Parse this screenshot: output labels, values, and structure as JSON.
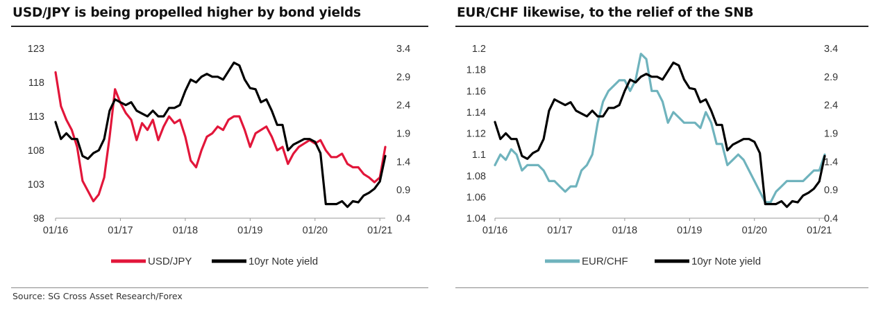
{
  "source": "Source: SG Cross Asset Research/Forex",
  "colors": {
    "usdjpy": "#e2163a",
    "eurchf": "#6fb3bd",
    "yield": "#000000"
  },
  "chart_data": [
    {
      "type": "line",
      "title": "USD/JPY is being propelled higher by bond yields",
      "x_tick_labels": [
        "01/16",
        "01/17",
        "01/18",
        "01/19",
        "01/20",
        "01/21"
      ],
      "x_ticks": [
        "2016-01",
        "2017-01",
        "2018-01",
        "2019-01",
        "2020-01",
        "2021-01"
      ],
      "xlim": [
        "2016-01",
        "2021-02"
      ],
      "left_axis": {
        "ticks": [
          98,
          103,
          108,
          113,
          118,
          123
        ],
        "labels": [
          "98",
          "103",
          "108",
          "113",
          "118",
          "123"
        ],
        "ylim": [
          98,
          123
        ]
      },
      "right_axis": {
        "ticks": [
          0.4,
          0.9,
          1.4,
          1.9,
          2.4,
          2.9,
          3.4
        ],
        "labels": [
          "0.4",
          "0.9",
          "1.4",
          "1.9",
          "2.4",
          "2.9",
          "3.4"
        ],
        "ylim": [
          0.4,
          3.4
        ]
      },
      "grid": false,
      "legend_position": "bottom",
      "series": [
        {
          "name": "USD/JPY",
          "axis": "left",
          "color": "#e2163a",
          "x": [
            "2016-01",
            "2016-02",
            "2016-03",
            "2016-04",
            "2016-05",
            "2016-06",
            "2016-07",
            "2016-08",
            "2016-09",
            "2016-10",
            "2016-11",
            "2016-12",
            "2017-01",
            "2017-02",
            "2017-03",
            "2017-04",
            "2017-05",
            "2017-06",
            "2017-07",
            "2017-08",
            "2017-09",
            "2017-10",
            "2017-11",
            "2017-12",
            "2018-01",
            "2018-02",
            "2018-03",
            "2018-04",
            "2018-05",
            "2018-06",
            "2018-07",
            "2018-08",
            "2018-09",
            "2018-10",
            "2018-11",
            "2018-12",
            "2019-01",
            "2019-02",
            "2019-03",
            "2019-04",
            "2019-05",
            "2019-06",
            "2019-07",
            "2019-08",
            "2019-09",
            "2019-10",
            "2019-11",
            "2019-12",
            "2020-01",
            "2020-02",
            "2020-03",
            "2020-04",
            "2020-05",
            "2020-06",
            "2020-07",
            "2020-08",
            "2020-09",
            "2020-10",
            "2020-11",
            "2020-12",
            "2021-01",
            "2021-02"
          ],
          "values": [
            119.5,
            114.5,
            112.5,
            111.0,
            108.5,
            103.5,
            102.0,
            100.5,
            101.5,
            104.0,
            110.0,
            117.0,
            115.0,
            113.5,
            112.5,
            109.5,
            112.0,
            111.0,
            112.5,
            109.5,
            111.5,
            113.0,
            112.0,
            112.5,
            110.0,
            106.5,
            105.5,
            108.0,
            110.0,
            110.5,
            111.5,
            111.0,
            112.5,
            113.0,
            113.0,
            111.0,
            108.5,
            110.5,
            111.0,
            111.5,
            110.0,
            108.0,
            108.5,
            106.0,
            107.5,
            108.5,
            109.0,
            109.5,
            109.0,
            109.5,
            108.0,
            107.0,
            107.0,
            107.5,
            106.0,
            105.5,
            105.5,
            104.5,
            104.0,
            103.3,
            104.0,
            108.5
          ]
        },
        {
          "name": "10yr Note yield",
          "axis": "right",
          "color": "#000000",
          "x": [
            "2016-01",
            "2016-02",
            "2016-03",
            "2016-04",
            "2016-05",
            "2016-06",
            "2016-07",
            "2016-08",
            "2016-09",
            "2016-10",
            "2016-11",
            "2016-12",
            "2017-01",
            "2017-02",
            "2017-03",
            "2017-04",
            "2017-05",
            "2017-06",
            "2017-07",
            "2017-08",
            "2017-09",
            "2017-10",
            "2017-11",
            "2017-12",
            "2018-01",
            "2018-02",
            "2018-03",
            "2018-04",
            "2018-05",
            "2018-06",
            "2018-07",
            "2018-08",
            "2018-09",
            "2018-10",
            "2018-11",
            "2018-12",
            "2019-01",
            "2019-02",
            "2019-03",
            "2019-04",
            "2019-05",
            "2019-06",
            "2019-07",
            "2019-08",
            "2019-09",
            "2019-10",
            "2019-11",
            "2019-12",
            "2020-01",
            "2020-02",
            "2020-03",
            "2020-04",
            "2020-05",
            "2020-06",
            "2020-07",
            "2020-08",
            "2020-09",
            "2020-10",
            "2020-11",
            "2020-12",
            "2021-01",
            "2021-02"
          ],
          "values": [
            2.1,
            1.8,
            1.9,
            1.8,
            1.8,
            1.5,
            1.45,
            1.55,
            1.6,
            1.8,
            2.3,
            2.5,
            2.45,
            2.4,
            2.45,
            2.3,
            2.25,
            2.2,
            2.3,
            2.2,
            2.2,
            2.35,
            2.35,
            2.4,
            2.65,
            2.85,
            2.8,
            2.9,
            2.95,
            2.9,
            2.9,
            2.85,
            3.0,
            3.15,
            3.1,
            2.85,
            2.7,
            2.68,
            2.45,
            2.5,
            2.3,
            2.05,
            2.05,
            1.6,
            1.7,
            1.75,
            1.8,
            1.8,
            1.75,
            1.55,
            0.65,
            0.65,
            0.65,
            0.7,
            0.6,
            0.7,
            0.68,
            0.8,
            0.85,
            0.92,
            1.05,
            1.5
          ]
        }
      ]
    },
    {
      "type": "line",
      "title": "EUR/CHF likewise, to the relief of the SNB",
      "x_tick_labels": [
        "01/16",
        "01/17",
        "01/18",
        "01/19",
        "01/20",
        "01/21"
      ],
      "x_ticks": [
        "2016-01",
        "2017-01",
        "2018-01",
        "2019-01",
        "2020-01",
        "2021-01"
      ],
      "xlim": [
        "2016-01",
        "2021-02"
      ],
      "left_axis": {
        "ticks": [
          1.04,
          1.06,
          1.08,
          1.1,
          1.12,
          1.14,
          1.16,
          1.18,
          1.2
        ],
        "labels": [
          "1.04",
          "1.06",
          "1.08",
          "1.1",
          "1.12",
          "1.14",
          "1.16",
          "1.18",
          "1.2"
        ],
        "ylim": [
          1.04,
          1.2
        ]
      },
      "right_axis": {
        "ticks": [
          0.4,
          0.9,
          1.4,
          1.9,
          2.4,
          2.9,
          3.4
        ],
        "labels": [
          "0.4",
          "0.9",
          "1.4",
          "1.9",
          "2.4",
          "2.9",
          "3.4"
        ],
        "ylim": [
          0.4,
          3.4
        ]
      },
      "grid": false,
      "legend_position": "bottom",
      "series": [
        {
          "name": "EUR/CHF",
          "axis": "left",
          "color": "#6fb3bd",
          "x": [
            "2016-01",
            "2016-02",
            "2016-03",
            "2016-04",
            "2016-05",
            "2016-06",
            "2016-07",
            "2016-08",
            "2016-09",
            "2016-10",
            "2016-11",
            "2016-12",
            "2017-01",
            "2017-02",
            "2017-03",
            "2017-04",
            "2017-05",
            "2017-06",
            "2017-07",
            "2017-08",
            "2017-09",
            "2017-10",
            "2017-11",
            "2017-12",
            "2018-01",
            "2018-02",
            "2018-03",
            "2018-04",
            "2018-05",
            "2018-06",
            "2018-07",
            "2018-08",
            "2018-09",
            "2018-10",
            "2018-11",
            "2018-12",
            "2019-01",
            "2019-02",
            "2019-03",
            "2019-04",
            "2019-05",
            "2019-06",
            "2019-07",
            "2019-08",
            "2019-09",
            "2019-10",
            "2019-11",
            "2019-12",
            "2020-01",
            "2020-02",
            "2020-03",
            "2020-04",
            "2020-05",
            "2020-06",
            "2020-07",
            "2020-08",
            "2020-09",
            "2020-10",
            "2020-11",
            "2020-12",
            "2021-01",
            "2021-02"
          ],
          "values": [
            1.09,
            1.1,
            1.095,
            1.105,
            1.1,
            1.085,
            1.09,
            1.09,
            1.09,
            1.085,
            1.075,
            1.075,
            1.07,
            1.065,
            1.07,
            1.07,
            1.085,
            1.09,
            1.1,
            1.13,
            1.15,
            1.16,
            1.165,
            1.17,
            1.17,
            1.16,
            1.17,
            1.195,
            1.19,
            1.16,
            1.16,
            1.15,
            1.13,
            1.14,
            1.135,
            1.13,
            1.13,
            1.13,
            1.125,
            1.14,
            1.13,
            1.11,
            1.11,
            1.09,
            1.095,
            1.1,
            1.095,
            1.085,
            1.075,
            1.065,
            1.055,
            1.055,
            1.065,
            1.07,
            1.075,
            1.075,
            1.075,
            1.075,
            1.08,
            1.085,
            1.085,
            1.1
          ]
        },
        {
          "name": "10yr Note yield",
          "axis": "right",
          "color": "#000000",
          "x": [
            "2016-01",
            "2016-02",
            "2016-03",
            "2016-04",
            "2016-05",
            "2016-06",
            "2016-07",
            "2016-08",
            "2016-09",
            "2016-10",
            "2016-11",
            "2016-12",
            "2017-01",
            "2017-02",
            "2017-03",
            "2017-04",
            "2017-05",
            "2017-06",
            "2017-07",
            "2017-08",
            "2017-09",
            "2017-10",
            "2017-11",
            "2017-12",
            "2018-01",
            "2018-02",
            "2018-03",
            "2018-04",
            "2018-05",
            "2018-06",
            "2018-07",
            "2018-08",
            "2018-09",
            "2018-10",
            "2018-11",
            "2018-12",
            "2019-01",
            "2019-02",
            "2019-03",
            "2019-04",
            "2019-05",
            "2019-06",
            "2019-07",
            "2019-08",
            "2019-09",
            "2019-10",
            "2019-11",
            "2019-12",
            "2020-01",
            "2020-02",
            "2020-03",
            "2020-04",
            "2020-05",
            "2020-06",
            "2020-07",
            "2020-08",
            "2020-09",
            "2020-10",
            "2020-11",
            "2020-12",
            "2021-01",
            "2021-02"
          ],
          "values": [
            2.1,
            1.8,
            1.9,
            1.8,
            1.8,
            1.5,
            1.45,
            1.55,
            1.6,
            1.8,
            2.3,
            2.5,
            2.45,
            2.4,
            2.45,
            2.3,
            2.25,
            2.2,
            2.3,
            2.2,
            2.2,
            2.35,
            2.35,
            2.4,
            2.65,
            2.85,
            2.8,
            2.9,
            2.95,
            2.9,
            2.9,
            2.85,
            3.0,
            3.15,
            3.1,
            2.85,
            2.7,
            2.68,
            2.45,
            2.5,
            2.3,
            2.05,
            2.05,
            1.6,
            1.7,
            1.75,
            1.8,
            1.8,
            1.75,
            1.55,
            0.65,
            0.65,
            0.65,
            0.7,
            0.6,
            0.7,
            0.68,
            0.8,
            0.85,
            0.92,
            1.05,
            1.5
          ]
        }
      ]
    }
  ]
}
